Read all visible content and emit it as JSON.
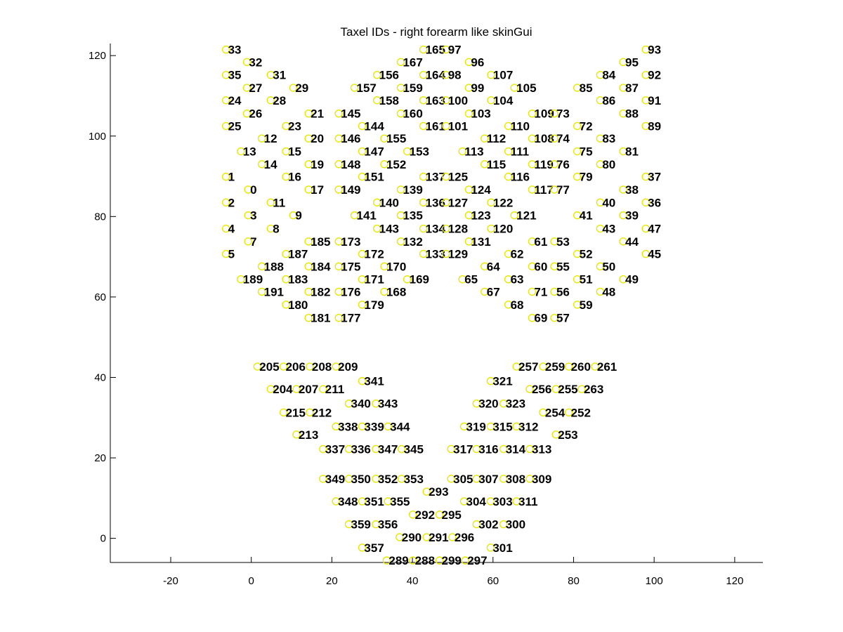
{
  "chart_data": {
    "type": "scatter",
    "title": "Taxel IDs - right forearm like skinGui",
    "xlabel": "",
    "ylabel": "",
    "xlim": [
      -35,
      127
    ],
    "ylim": [
      -6,
      123
    ],
    "xticks": [
      -20,
      0,
      20,
      40,
      60,
      80,
      100,
      120
    ],
    "yticks": [
      0,
      20,
      40,
      60,
      80,
      100,
      120
    ],
    "grid": false,
    "marker_color": "#e8e800",
    "label_color": "#000000",
    "points": [
      {
        "id": "33",
        "x": -6.3,
        "y": 121.5
      },
      {
        "id": "32",
        "x": -1.1,
        "y": 118.4
      },
      {
        "id": "35",
        "x": -6.3,
        "y": 115.2
      },
      {
        "id": "31",
        "x": 4.8,
        "y": 115.2
      },
      {
        "id": "27",
        "x": -1.1,
        "y": 112.0
      },
      {
        "id": "29",
        "x": 10.4,
        "y": 112.0
      },
      {
        "id": "24",
        "x": -6.3,
        "y": 108.9
      },
      {
        "id": "28",
        "x": 4.8,
        "y": 108.9
      },
      {
        "id": "26",
        "x": -1.1,
        "y": 105.6
      },
      {
        "id": "21",
        "x": 14.2,
        "y": 105.6
      },
      {
        "id": "25",
        "x": -6.3,
        "y": 102.5
      },
      {
        "id": "23",
        "x": 8.6,
        "y": 102.5
      },
      {
        "id": "12",
        "x": 2.6,
        "y": 99.4
      },
      {
        "id": "20",
        "x": 14.2,
        "y": 99.4
      },
      {
        "id": "13",
        "x": -2.6,
        "y": 96.2
      },
      {
        "id": "15",
        "x": 8.6,
        "y": 96.2
      },
      {
        "id": "14",
        "x": 2.6,
        "y": 93.0
      },
      {
        "id": "19",
        "x": 14.2,
        "y": 93.0
      },
      {
        "id": "1",
        "x": -6.3,
        "y": 89.9
      },
      {
        "id": "16",
        "x": 8.6,
        "y": 89.9
      },
      {
        "id": "0",
        "x": -0.8,
        "y": 86.7
      },
      {
        "id": "17",
        "x": 14.2,
        "y": 86.7
      },
      {
        "id": "2",
        "x": -6.3,
        "y": 83.5
      },
      {
        "id": "11",
        "x": 4.8,
        "y": 83.5
      },
      {
        "id": "3",
        "x": -0.8,
        "y": 80.3
      },
      {
        "id": "9",
        "x": 10.4,
        "y": 80.3
      },
      {
        "id": "4",
        "x": -6.3,
        "y": 77.0
      },
      {
        "id": "8",
        "x": 4.8,
        "y": 77.0
      },
      {
        "id": "7",
        "x": -0.8,
        "y": 73.8
      },
      {
        "id": "185",
        "x": 14.2,
        "y": 73.8
      },
      {
        "id": "5",
        "x": -6.3,
        "y": 70.7
      },
      {
        "id": "187",
        "x": 8.6,
        "y": 70.7
      },
      {
        "id": "188",
        "x": 2.6,
        "y": 67.6
      },
      {
        "id": "184",
        "x": 14.2,
        "y": 67.6
      },
      {
        "id": "189",
        "x": -2.6,
        "y": 64.4
      },
      {
        "id": "183",
        "x": 8.6,
        "y": 64.4
      },
      {
        "id": "191",
        "x": 2.6,
        "y": 61.3
      },
      {
        "id": "182",
        "x": 14.2,
        "y": 61.3
      },
      {
        "id": "180",
        "x": 8.6,
        "y": 58.1
      },
      {
        "id": "181",
        "x": 14.2,
        "y": 54.8
      },
      {
        "id": "165",
        "x": 42.7,
        "y": 121.5
      },
      {
        "id": "97",
        "x": 48.3,
        "y": 121.5
      },
      {
        "id": "167",
        "x": 37.1,
        "y": 118.4
      },
      {
        "id": "156",
        "x": 31.2,
        "y": 115.2
      },
      {
        "id": "164",
        "x": 42.7,
        "y": 115.2
      },
      {
        "id": "157",
        "x": 25.6,
        "y": 112.0
      },
      {
        "id": "159",
        "x": 37.1,
        "y": 112.0
      },
      {
        "id": "158",
        "x": 31.2,
        "y": 108.9
      },
      {
        "id": "163",
        "x": 42.7,
        "y": 108.9
      },
      {
        "id": "145",
        "x": 21.7,
        "y": 105.6
      },
      {
        "id": "160",
        "x": 37.1,
        "y": 105.6
      },
      {
        "id": "144",
        "x": 27.5,
        "y": 102.5
      },
      {
        "id": "161",
        "x": 42.7,
        "y": 102.5
      },
      {
        "id": "146",
        "x": 21.7,
        "y": 99.4
      },
      {
        "id": "155",
        "x": 33.0,
        "y": 99.4
      },
      {
        "id": "147",
        "x": 27.5,
        "y": 96.2
      },
      {
        "id": "153",
        "x": 38.7,
        "y": 96.2
      },
      {
        "id": "148",
        "x": 21.7,
        "y": 93.0
      },
      {
        "id": "152",
        "x": 33.0,
        "y": 93.0
      },
      {
        "id": "151",
        "x": 27.5,
        "y": 89.9
      },
      {
        "id": "137",
        "x": 42.7,
        "y": 89.9
      },
      {
        "id": "149",
        "x": 21.7,
        "y": 86.7
      },
      {
        "id": "139",
        "x": 37.1,
        "y": 86.7
      },
      {
        "id": "140",
        "x": 31.2,
        "y": 83.5
      },
      {
        "id": "136",
        "x": 42.7,
        "y": 83.5
      },
      {
        "id": "141",
        "x": 25.6,
        "y": 80.3
      },
      {
        "id": "135",
        "x": 37.1,
        "y": 80.3
      },
      {
        "id": "143",
        "x": 31.2,
        "y": 77.0
      },
      {
        "id": "134",
        "x": 42.7,
        "y": 77.0
      },
      {
        "id": "173",
        "x": 21.7,
        "y": 73.8
      },
      {
        "id": "132",
        "x": 37.1,
        "y": 73.8
      },
      {
        "id": "172",
        "x": 27.5,
        "y": 70.7
      },
      {
        "id": "133",
        "x": 42.7,
        "y": 70.7
      },
      {
        "id": "175",
        "x": 21.7,
        "y": 67.6
      },
      {
        "id": "170",
        "x": 33.0,
        "y": 67.6
      },
      {
        "id": "171",
        "x": 27.5,
        "y": 64.4
      },
      {
        "id": "169",
        "x": 38.7,
        "y": 64.4
      },
      {
        "id": "176",
        "x": 21.7,
        "y": 61.3
      },
      {
        "id": "168",
        "x": 33.0,
        "y": 61.3
      },
      {
        "id": "179",
        "x": 27.5,
        "y": 58.1
      },
      {
        "id": "177",
        "x": 21.7,
        "y": 54.8
      },
      {
        "id": "96",
        "x": 54.0,
        "y": 118.4
      },
      {
        "id": "98",
        "x": 48.3,
        "y": 115.2
      },
      {
        "id": "107",
        "x": 59.5,
        "y": 115.2
      },
      {
        "id": "99",
        "x": 54.0,
        "y": 112.0
      },
      {
        "id": "105",
        "x": 65.3,
        "y": 112.0
      },
      {
        "id": "100",
        "x": 48.3,
        "y": 108.9
      },
      {
        "id": "104",
        "x": 59.5,
        "y": 108.9
      },
      {
        "id": "103",
        "x": 54.0,
        "y": 105.6
      },
      {
        "id": "109",
        "x": 69.7,
        "y": 105.6
      },
      {
        "id": "101",
        "x": 48.3,
        "y": 102.5
      },
      {
        "id": "110",
        "x": 63.8,
        "y": 102.5
      },
      {
        "id": "112",
        "x": 57.9,
        "y": 99.4
      },
      {
        "id": "108",
        "x": 69.7,
        "y": 99.4
      },
      {
        "id": "113",
        "x": 52.4,
        "y": 96.2
      },
      {
        "id": "111",
        "x": 63.8,
        "y": 96.2
      },
      {
        "id": "115",
        "x": 57.9,
        "y": 93.0
      },
      {
        "id": "119",
        "x": 69.7,
        "y": 93.0
      },
      {
        "id": "125",
        "x": 48.3,
        "y": 89.9
      },
      {
        "id": "116",
        "x": 63.8,
        "y": 89.9
      },
      {
        "id": "124",
        "x": 54.0,
        "y": 86.7
      },
      {
        "id": "117",
        "x": 69.7,
        "y": 86.7
      },
      {
        "id": "127",
        "x": 48.3,
        "y": 83.5
      },
      {
        "id": "122",
        "x": 59.5,
        "y": 83.5
      },
      {
        "id": "123",
        "x": 54.0,
        "y": 80.3
      },
      {
        "id": "121",
        "x": 65.3,
        "y": 80.3
      },
      {
        "id": "128",
        "x": 48.3,
        "y": 77.0
      },
      {
        "id": "120",
        "x": 59.5,
        "y": 77.0
      },
      {
        "id": "131",
        "x": 54.0,
        "y": 73.8
      },
      {
        "id": "61",
        "x": 69.7,
        "y": 73.8
      },
      {
        "id": "129",
        "x": 48.3,
        "y": 70.7
      },
      {
        "id": "62",
        "x": 63.8,
        "y": 70.7
      },
      {
        "id": "64",
        "x": 57.9,
        "y": 67.6
      },
      {
        "id": "60",
        "x": 69.7,
        "y": 67.6
      },
      {
        "id": "65",
        "x": 52.4,
        "y": 64.4
      },
      {
        "id": "63",
        "x": 63.8,
        "y": 64.4
      },
      {
        "id": "67",
        "x": 57.9,
        "y": 61.3
      },
      {
        "id": "71",
        "x": 69.7,
        "y": 61.3
      },
      {
        "id": "68",
        "x": 63.8,
        "y": 58.1
      },
      {
        "id": "69",
        "x": 69.7,
        "y": 54.8
      },
      {
        "id": "93",
        "x": 97.9,
        "y": 121.5
      },
      {
        "id": "95",
        "x": 92.3,
        "y": 118.4
      },
      {
        "id": "84",
        "x": 86.6,
        "y": 115.2
      },
      {
        "id": "92",
        "x": 97.9,
        "y": 115.2
      },
      {
        "id": "85",
        "x": 80.9,
        "y": 112.0
      },
      {
        "id": "87",
        "x": 92.3,
        "y": 112.0
      },
      {
        "id": "86",
        "x": 86.6,
        "y": 108.9
      },
      {
        "id": "91",
        "x": 97.9,
        "y": 108.9
      },
      {
        "id": "73",
        "x": 75.2,
        "y": 105.6
      },
      {
        "id": "88",
        "x": 92.3,
        "y": 105.6
      },
      {
        "id": "72",
        "x": 80.9,
        "y": 102.5
      },
      {
        "id": "89",
        "x": 97.9,
        "y": 102.5
      },
      {
        "id": "74",
        "x": 75.2,
        "y": 99.4
      },
      {
        "id": "83",
        "x": 86.6,
        "y": 99.4
      },
      {
        "id": "75",
        "x": 80.9,
        "y": 96.2
      },
      {
        "id": "81",
        "x": 92.3,
        "y": 96.2
      },
      {
        "id": "76",
        "x": 75.2,
        "y": 93.0
      },
      {
        "id": "80",
        "x": 86.6,
        "y": 93.0
      },
      {
        "id": "79",
        "x": 80.9,
        "y": 89.9
      },
      {
        "id": "37",
        "x": 97.9,
        "y": 89.9
      },
      {
        "id": "77",
        "x": 75.2,
        "y": 86.7
      },
      {
        "id": "38",
        "x": 92.3,
        "y": 86.7
      },
      {
        "id": "40",
        "x": 86.6,
        "y": 83.5
      },
      {
        "id": "36",
        "x": 97.9,
        "y": 83.5
      },
      {
        "id": "41",
        "x": 80.9,
        "y": 80.3
      },
      {
        "id": "39",
        "x": 92.3,
        "y": 80.3
      },
      {
        "id": "43",
        "x": 86.6,
        "y": 77.0
      },
      {
        "id": "47",
        "x": 97.9,
        "y": 77.0
      },
      {
        "id": "53",
        "x": 75.2,
        "y": 73.8
      },
      {
        "id": "44",
        "x": 92.3,
        "y": 73.8
      },
      {
        "id": "52",
        "x": 80.9,
        "y": 70.7
      },
      {
        "id": "45",
        "x": 97.9,
        "y": 70.7
      },
      {
        "id": "55",
        "x": 75.2,
        "y": 67.6
      },
      {
        "id": "50",
        "x": 86.6,
        "y": 67.6
      },
      {
        "id": "51",
        "x": 80.9,
        "y": 64.4
      },
      {
        "id": "49",
        "x": 92.3,
        "y": 64.4
      },
      {
        "id": "56",
        "x": 75.2,
        "y": 61.3
      },
      {
        "id": "48",
        "x": 86.6,
        "y": 61.3
      },
      {
        "id": "59",
        "x": 80.9,
        "y": 58.1
      },
      {
        "id": "57",
        "x": 75.2,
        "y": 54.8
      },
      {
        "id": "205",
        "x": 1.5,
        "y": 42.7
      },
      {
        "id": "206",
        "x": 8.0,
        "y": 42.7
      },
      {
        "id": "208",
        "x": 14.5,
        "y": 42.7
      },
      {
        "id": "209",
        "x": 21.0,
        "y": 42.7
      },
      {
        "id": "341",
        "x": 27.5,
        "y": 39.1
      },
      {
        "id": "204",
        "x": 4.8,
        "y": 37.1
      },
      {
        "id": "207",
        "x": 11.2,
        "y": 37.1
      },
      {
        "id": "211",
        "x": 17.8,
        "y": 37.1
      },
      {
        "id": "340",
        "x": 24.2,
        "y": 33.5
      },
      {
        "id": "343",
        "x": 30.9,
        "y": 33.5
      },
      {
        "id": "215",
        "x": 8.0,
        "y": 31.3
      },
      {
        "id": "212",
        "x": 14.5,
        "y": 31.3
      },
      {
        "id": "338",
        "x": 21.0,
        "y": 27.8
      },
      {
        "id": "339",
        "x": 27.5,
        "y": 27.8
      },
      {
        "id": "344",
        "x": 33.9,
        "y": 27.8
      },
      {
        "id": "213",
        "x": 11.2,
        "y": 25.8
      },
      {
        "id": "337",
        "x": 17.8,
        "y": 22.2
      },
      {
        "id": "336",
        "x": 24.2,
        "y": 22.2
      },
      {
        "id": "347",
        "x": 30.9,
        "y": 22.2
      },
      {
        "id": "345",
        "x": 37.3,
        "y": 22.2
      },
      {
        "id": "349",
        "x": 17.8,
        "y": 14.8
      },
      {
        "id": "350",
        "x": 24.2,
        "y": 14.8
      },
      {
        "id": "352",
        "x": 30.9,
        "y": 14.8
      },
      {
        "id": "353",
        "x": 37.3,
        "y": 14.8
      },
      {
        "id": "348",
        "x": 21.0,
        "y": 9.2
      },
      {
        "id": "351",
        "x": 27.5,
        "y": 9.2
      },
      {
        "id": "355",
        "x": 33.9,
        "y": 9.2
      },
      {
        "id": "359",
        "x": 24.2,
        "y": 3.5
      },
      {
        "id": "356",
        "x": 30.9,
        "y": 3.5
      },
      {
        "id": "357",
        "x": 27.5,
        "y": -2.3
      },
      {
        "id": "257",
        "x": 65.8,
        "y": 42.7
      },
      {
        "id": "259",
        "x": 72.4,
        "y": 42.7
      },
      {
        "id": "260",
        "x": 78.8,
        "y": 42.7
      },
      {
        "id": "261",
        "x": 85.3,
        "y": 42.7
      },
      {
        "id": "321",
        "x": 59.4,
        "y": 39.1
      },
      {
        "id": "256",
        "x": 69.1,
        "y": 37.1
      },
      {
        "id": "255",
        "x": 75.6,
        "y": 37.1
      },
      {
        "id": "263",
        "x": 82.0,
        "y": 37.1
      },
      {
        "id": "320",
        "x": 55.9,
        "y": 33.5
      },
      {
        "id": "323",
        "x": 62.6,
        "y": 33.5
      },
      {
        "id": "254",
        "x": 72.4,
        "y": 31.3
      },
      {
        "id": "252",
        "x": 78.8,
        "y": 31.3
      },
      {
        "id": "319",
        "x": 52.8,
        "y": 27.8
      },
      {
        "id": "315",
        "x": 59.4,
        "y": 27.8
      },
      {
        "id": "312",
        "x": 65.8,
        "y": 27.8
      },
      {
        "id": "253",
        "x": 75.6,
        "y": 25.8
      },
      {
        "id": "317",
        "x": 49.6,
        "y": 22.2
      },
      {
        "id": "316",
        "x": 55.9,
        "y": 22.2
      },
      {
        "id": "314",
        "x": 62.6,
        "y": 22.2
      },
      {
        "id": "313",
        "x": 69.1,
        "y": 22.2
      },
      {
        "id": "305",
        "x": 49.6,
        "y": 14.8
      },
      {
        "id": "307",
        "x": 55.9,
        "y": 14.8
      },
      {
        "id": "308",
        "x": 62.6,
        "y": 14.8
      },
      {
        "id": "309",
        "x": 69.1,
        "y": 14.8
      },
      {
        "id": "304",
        "x": 52.8,
        "y": 9.2
      },
      {
        "id": "303",
        "x": 59.4,
        "y": 9.2
      },
      {
        "id": "311",
        "x": 65.8,
        "y": 9.2
      },
      {
        "id": "302",
        "x": 55.9,
        "y": 3.5
      },
      {
        "id": "300",
        "x": 62.6,
        "y": 3.5
      },
      {
        "id": "301",
        "x": 59.4,
        "y": -2.3
      },
      {
        "id": "293",
        "x": 43.5,
        "y": 11.6
      },
      {
        "id": "292",
        "x": 40.1,
        "y": 5.9
      },
      {
        "id": "295",
        "x": 46.7,
        "y": 5.9
      },
      {
        "id": "290",
        "x": 36.8,
        "y": 0.3
      },
      {
        "id": "291",
        "x": 43.5,
        "y": 0.3
      },
      {
        "id": "296",
        "x": 49.9,
        "y": 0.3
      },
      {
        "id": "289",
        "x": 33.6,
        "y": -5.5
      },
      {
        "id": "288",
        "x": 40.1,
        "y": -5.5
      },
      {
        "id": "299",
        "x": 46.7,
        "y": -5.5
      },
      {
        "id": "297",
        "x": 53.1,
        "y": -5.5
      }
    ]
  }
}
